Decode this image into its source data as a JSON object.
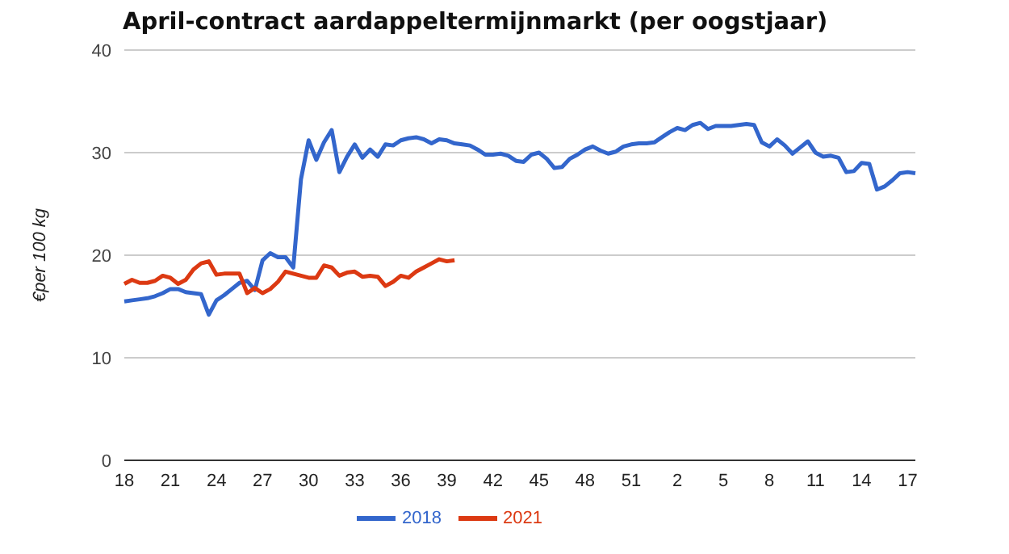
{
  "chart_data": {
    "type": "line",
    "title": "April-contract aardappeltermijnmarkt (per oogstjaar)",
    "ylabel": "€per 100 kg",
    "categories": [
      "18",
      null,
      null,
      null,
      null,
      null,
      "21",
      null,
      null,
      null,
      null,
      null,
      "24",
      null,
      null,
      null,
      null,
      null,
      "27",
      null,
      null,
      null,
      null,
      null,
      "30",
      null,
      null,
      null,
      null,
      null,
      "33",
      null,
      null,
      null,
      null,
      null,
      "36",
      null,
      null,
      null,
      null,
      null,
      "39",
      null,
      null,
      null,
      null,
      null,
      "42",
      null,
      null,
      null,
      null,
      null,
      "45",
      null,
      null,
      null,
      null,
      null,
      "48",
      null,
      null,
      null,
      null,
      null,
      "51",
      null,
      null,
      null,
      null,
      null,
      "2",
      null,
      null,
      null,
      null,
      null,
      "5",
      null,
      null,
      null,
      null,
      null,
      "8",
      null,
      null,
      null,
      null,
      null,
      "11",
      null,
      null,
      null,
      null,
      null,
      "14",
      null,
      null,
      null,
      null,
      null,
      "17",
      null
    ],
    "ylim": [
      0,
      40
    ],
    "yticks": [
      0,
      10,
      20,
      30,
      40
    ],
    "grid": "y",
    "legend": "bottom",
    "marker": "none",
    "line_style": "solid",
    "series": [
      {
        "name": "2018",
        "color": "#3366cc",
        "values": [
          15.5,
          15.6,
          15.7,
          15.8,
          16.0,
          16.3,
          16.7,
          16.7,
          16.4,
          16.3,
          16.2,
          14.2,
          15.6,
          16.1,
          16.7,
          17.3,
          17.5,
          16.6,
          19.5,
          20.2,
          19.8,
          19.8,
          18.8,
          27.4,
          31.2,
          29.3,
          31.0,
          32.2,
          28.1,
          29.6,
          30.8,
          29.5,
          30.3,
          29.6,
          30.8,
          30.7,
          31.2,
          31.4,
          31.5,
          31.3,
          30.9,
          31.3,
          31.2,
          30.9,
          30.8,
          30.7,
          30.3,
          29.8,
          29.8,
          29.9,
          29.7,
          29.2,
          29.1,
          29.8,
          30.0,
          29.4,
          28.5,
          28.6,
          29.4,
          29.8,
          30.3,
          30.6,
          30.2,
          29.9,
          30.1,
          30.6,
          30.8,
          30.9,
          30.9,
          31.0,
          31.5,
          32.0,
          32.4,
          32.2,
          32.7,
          32.9,
          32.3,
          32.6,
          32.6,
          32.6,
          32.7,
          32.8,
          32.7,
          31.0,
          30.6,
          31.3,
          30.7,
          29.9,
          30.5,
          31.1,
          30.0,
          29.6,
          29.7,
          29.5,
          28.1,
          28.2,
          29.0,
          28.9,
          26.4,
          26.7,
          27.3,
          28.0,
          28.1,
          28.0
        ]
      },
      {
        "name": "2021",
        "color": "#dc3912",
        "values": [
          17.2,
          17.6,
          17.3,
          17.3,
          17.5,
          18.0,
          17.8,
          17.2,
          17.6,
          18.6,
          19.2,
          19.4,
          18.1,
          18.2,
          18.2,
          18.2,
          16.3,
          16.8,
          16.3,
          16.7,
          17.4,
          18.4,
          18.2,
          18.0,
          17.8,
          17.8,
          19.0,
          18.8,
          18.0,
          18.3,
          18.4,
          17.9,
          18.0,
          17.9,
          17.0,
          17.4,
          18.0,
          17.8,
          18.4,
          18.8,
          19.2,
          19.6,
          19.4,
          19.5,
          null,
          null,
          null,
          null,
          null,
          null,
          null,
          null,
          null,
          null,
          null,
          null,
          null,
          null,
          null,
          null,
          null,
          null,
          null,
          null,
          null,
          null,
          null,
          null,
          null,
          null,
          null,
          null,
          null,
          null,
          null,
          null,
          null,
          null,
          null,
          null,
          null,
          null,
          null,
          null,
          null,
          null,
          null,
          null,
          null,
          null,
          null,
          null,
          null,
          null,
          null,
          null,
          null,
          null,
          null,
          null,
          null,
          null,
          null,
          null
        ]
      }
    ]
  }
}
